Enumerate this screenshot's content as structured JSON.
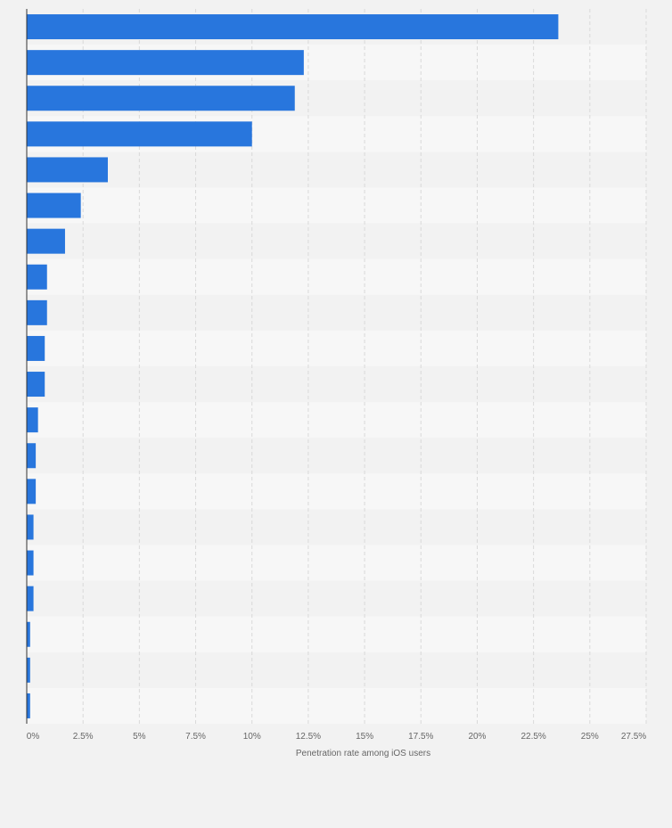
{
  "chart_data": {
    "type": "bar",
    "orientation": "horizontal",
    "categories": [
      "",
      "",
      "",
      "",
      "",
      "",
      "",
      "",
      "",
      "",
      "",
      "",
      "",
      "",
      "",
      "",
      "",
      "",
      "",
      ""
    ],
    "values": [
      23.6,
      12.3,
      11.9,
      10.0,
      3.6,
      2.4,
      1.7,
      0.9,
      0.9,
      0.8,
      0.8,
      0.5,
      0.4,
      0.4,
      0.3,
      0.3,
      0.3,
      0.15,
      0.15,
      0.15
    ],
    "xlabel": "Penetration rate among iOS users",
    "xlim": [
      0,
      27.5
    ],
    "xticks": [
      "0%",
      "2.5%",
      "5%",
      "7.5%",
      "10%",
      "12.5%",
      "15%",
      "17.5%",
      "20%",
      "22.5%",
      "25%",
      "27.5%"
    ],
    "grid": true,
    "colors": {
      "bar": "#2876dd",
      "band_light": "#f7f7f7",
      "band_dark": "#f2f2f2",
      "grid": "#d9d9d9",
      "axis": "#333333"
    }
  }
}
